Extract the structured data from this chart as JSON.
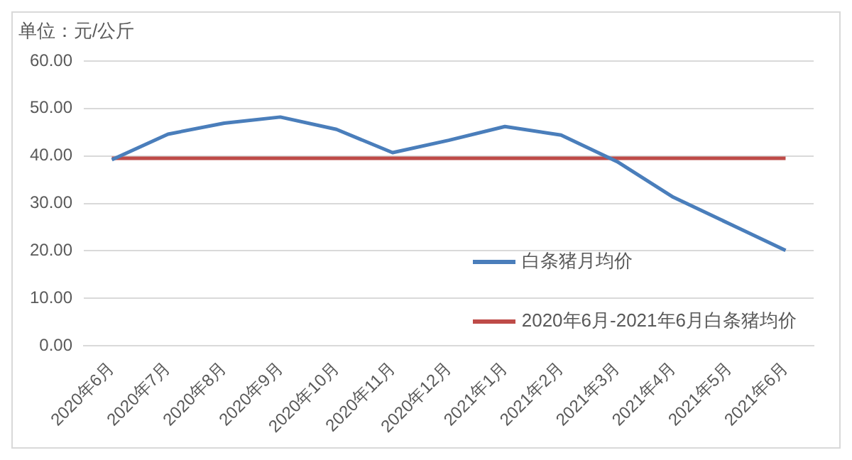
{
  "chart_data": {
    "type": "line",
    "ylabel": "单位：元/公斤",
    "categories": [
      "2020年6月",
      "2020年7月",
      "2020年8月",
      "2020年9月",
      "2020年10月",
      "2020年11月",
      "2020年12月",
      "2021年1月",
      "2021年2月",
      "2021年3月",
      "2021年4月",
      "2021年5月",
      "2021年6月"
    ],
    "series": [
      {
        "name": "白条猪月均价",
        "color": "#4a7ebb",
        "values": [
          39.2,
          44.6,
          46.9,
          48.2,
          45.6,
          40.7,
          43.3,
          46.2,
          44.4,
          38.8,
          31.3,
          25.7,
          20.1
        ]
      },
      {
        "name": "2020年6月-2021年6月白条猪均价",
        "color": "#be4b48",
        "values": [
          39.5,
          39.5,
          39.5,
          39.5,
          39.5,
          39.5,
          39.5,
          39.5,
          39.5,
          39.5,
          39.5,
          39.5,
          39.5
        ]
      }
    ],
    "ylim": [
      0,
      60
    ],
    "yticks": [
      {
        "value": 0,
        "label": "0.00"
      },
      {
        "value": 10,
        "label": "10.00"
      },
      {
        "value": 20,
        "label": "20.00"
      },
      {
        "value": 30,
        "label": "30.00"
      },
      {
        "value": 40,
        "label": "40.00"
      },
      {
        "value": 50,
        "label": "50.00"
      },
      {
        "value": 60,
        "label": "60.00"
      }
    ],
    "grid": "y",
    "legend": "bottom right",
    "marker": "none",
    "line_style": "solid"
  }
}
